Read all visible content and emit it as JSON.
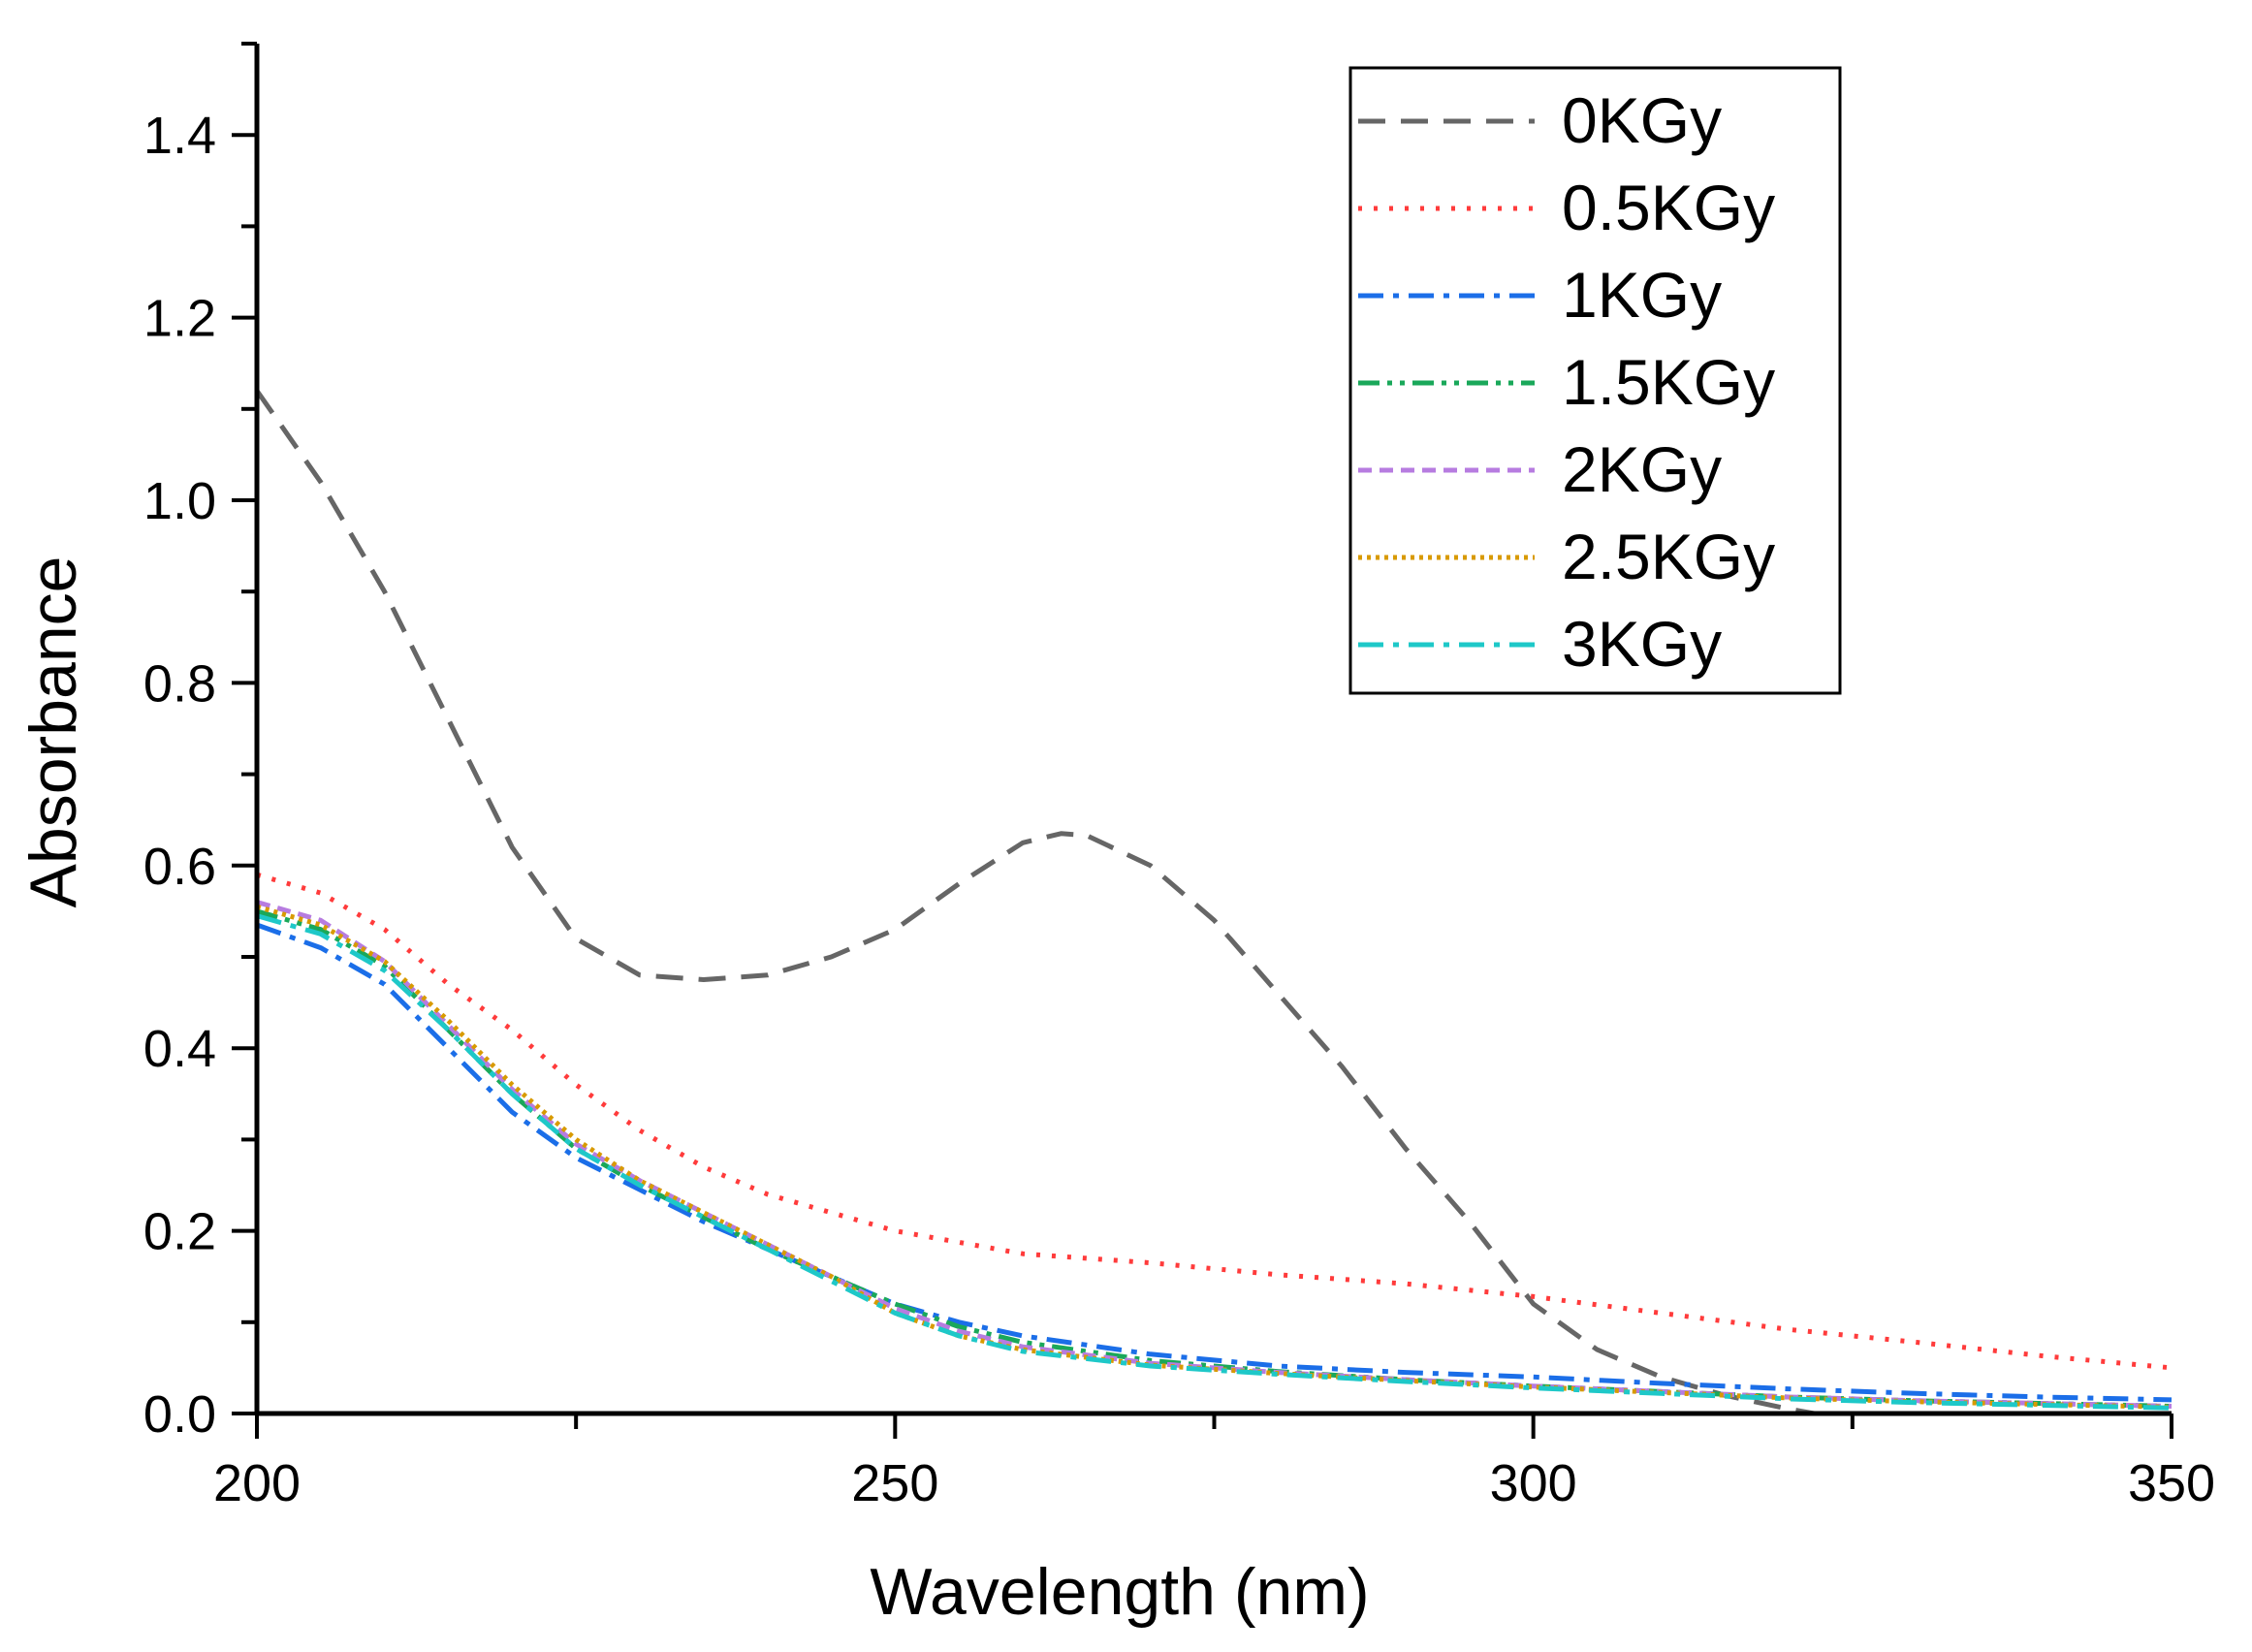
{
  "chart_data": {
    "type": "line",
    "title": "",
    "xlabel": "Wavelength (nm)",
    "ylabel": "Absorbance",
    "xlim": [
      200,
      350
    ],
    "ylim": [
      0,
      1.5
    ],
    "xticks": [
      200,
      250,
      300,
      350
    ],
    "xtick_labels": [
      "200",
      "250",
      "300",
      "350"
    ],
    "yticks": [
      0.0,
      0.2,
      0.4,
      0.6,
      0.8,
      1.0,
      1.2,
      1.4
    ],
    "ytick_labels": [
      "0.0",
      "0.2",
      "0.4",
      "0.6",
      "0.8",
      "1.0",
      "1.2",
      "1.4"
    ],
    "legend_position": "top-right",
    "series": [
      {
        "name": "0KGy",
        "color": "#666666",
        "dash": "dash",
        "x": [
          200,
          205,
          210,
          215,
          220,
          225,
          230,
          235,
          240,
          245,
          250,
          255,
          260,
          263,
          265,
          270,
          275,
          280,
          285,
          290,
          295,
          300,
          305,
          310,
          315,
          320,
          322
        ],
        "y": [
          1.12,
          1.02,
          0.9,
          0.76,
          0.62,
          0.52,
          0.48,
          0.475,
          0.48,
          0.5,
          0.53,
          0.58,
          0.625,
          0.635,
          0.633,
          0.6,
          0.54,
          0.46,
          0.38,
          0.29,
          0.21,
          0.12,
          0.07,
          0.04,
          0.02,
          0.005,
          0.0
        ]
      },
      {
        "name": "0.5KGy",
        "color": "#ff3b3b",
        "dash": "dot",
        "x": [
          200,
          205,
          210,
          215,
          220,
          225,
          230,
          235,
          240,
          245,
          250,
          260,
          270,
          280,
          290,
          300,
          310,
          320,
          330,
          340,
          350
        ],
        "y": [
          0.59,
          0.57,
          0.53,
          0.47,
          0.42,
          0.36,
          0.31,
          0.27,
          0.24,
          0.22,
          0.2,
          0.175,
          0.165,
          0.152,
          0.142,
          0.128,
          0.11,
          0.092,
          0.078,
          0.063,
          0.05
        ]
      },
      {
        "name": "1KGy",
        "color": "#1b6ee8",
        "dash": "dashdot",
        "x": [
          200,
          205,
          210,
          215,
          220,
          225,
          230,
          235,
          240,
          245,
          250,
          255,
          260,
          270,
          280,
          290,
          300,
          310,
          320,
          330,
          340,
          350
        ],
        "y": [
          0.535,
          0.51,
          0.47,
          0.4,
          0.33,
          0.28,
          0.245,
          0.21,
          0.18,
          0.15,
          0.12,
          0.1,
          0.085,
          0.065,
          0.052,
          0.045,
          0.04,
          0.033,
          0.027,
          0.022,
          0.018,
          0.015
        ]
      },
      {
        "name": "1.5KGy",
        "color": "#1aa85a",
        "dash": "dashdotdot",
        "x": [
          200,
          205,
          210,
          215,
          220,
          225,
          230,
          235,
          240,
          245,
          250,
          255,
          260,
          270,
          280,
          290,
          300,
          310,
          320,
          330,
          340,
          350
        ],
        "y": [
          0.55,
          0.53,
          0.49,
          0.42,
          0.35,
          0.29,
          0.25,
          0.215,
          0.18,
          0.15,
          0.12,
          0.095,
          0.078,
          0.058,
          0.046,
          0.037,
          0.03,
          0.024,
          0.018,
          0.014,
          0.011,
          0.008
        ]
      },
      {
        "name": "2KGy",
        "color": "#b77ce0",
        "dash": "shortdash",
        "x": [
          200,
          205,
          210,
          215,
          220,
          225,
          230,
          235,
          240,
          245,
          250,
          255,
          260,
          270,
          280,
          290,
          300,
          310,
          320,
          330,
          340,
          350
        ],
        "y": [
          0.56,
          0.54,
          0.495,
          0.425,
          0.355,
          0.295,
          0.255,
          0.22,
          0.185,
          0.15,
          0.115,
          0.09,
          0.073,
          0.055,
          0.045,
          0.037,
          0.03,
          0.024,
          0.018,
          0.014,
          0.011,
          0.008
        ]
      },
      {
        "name": "2.5KGy",
        "color": "#d89a00",
        "dash": "shortdot",
        "x": [
          200,
          205,
          210,
          215,
          220,
          225,
          230,
          235,
          240,
          245,
          250,
          255,
          260,
          270,
          280,
          290,
          300,
          310,
          320,
          330,
          340,
          350
        ],
        "y": [
          0.555,
          0.535,
          0.495,
          0.43,
          0.36,
          0.3,
          0.255,
          0.22,
          0.185,
          0.15,
          0.11,
          0.085,
          0.07,
          0.053,
          0.044,
          0.036,
          0.029,
          0.023,
          0.017,
          0.013,
          0.01,
          0.007
        ]
      },
      {
        "name": "3KGy",
        "color": "#1ec8c8",
        "dash": "dashdot",
        "x": [
          200,
          205,
          210,
          215,
          220,
          225,
          230,
          235,
          240,
          245,
          250,
          255,
          260,
          270,
          280,
          290,
          300,
          310,
          320,
          330,
          340,
          350
        ],
        "y": [
          0.545,
          0.525,
          0.485,
          0.42,
          0.35,
          0.29,
          0.25,
          0.215,
          0.18,
          0.145,
          0.11,
          0.085,
          0.068,
          0.052,
          0.043,
          0.035,
          0.028,
          0.022,
          0.016,
          0.012,
          0.009,
          0.006
        ]
      }
    ]
  }
}
